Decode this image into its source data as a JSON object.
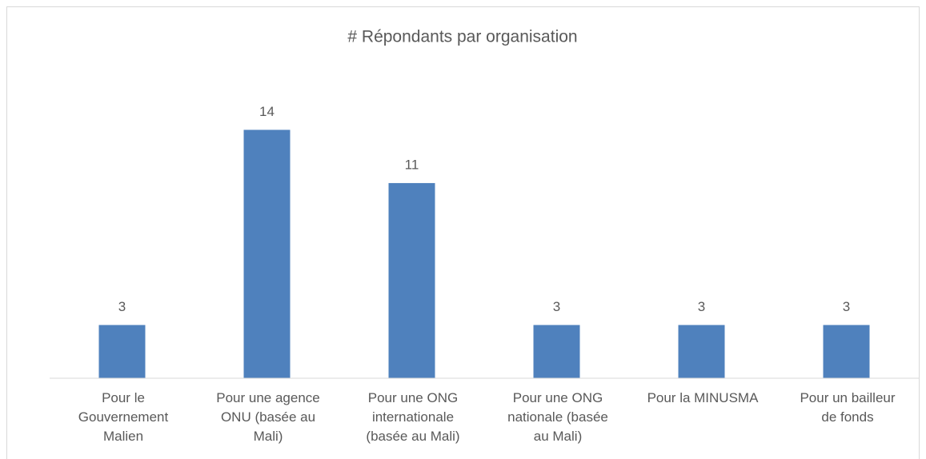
{
  "chart_data": {
    "type": "bar",
    "title": "# Répondants par organisation",
    "categories": [
      "Pour le\nGouvernement\nMalien",
      "Pour une agence\nONU (basée au\nMali)",
      "Pour une ONG\ninternationale\n(basée au Mali)",
      "Pour une ONG\nnationale (basée\nau Mali)",
      "Pour la MINUSMA",
      "Pour un bailleur\nde fonds"
    ],
    "values": [
      3,
      14,
      11,
      3,
      3,
      3
    ],
    "color": "#4f81bd",
    "ylim": [
      0,
      16
    ],
    "grid": false,
    "data_labels": true
  }
}
